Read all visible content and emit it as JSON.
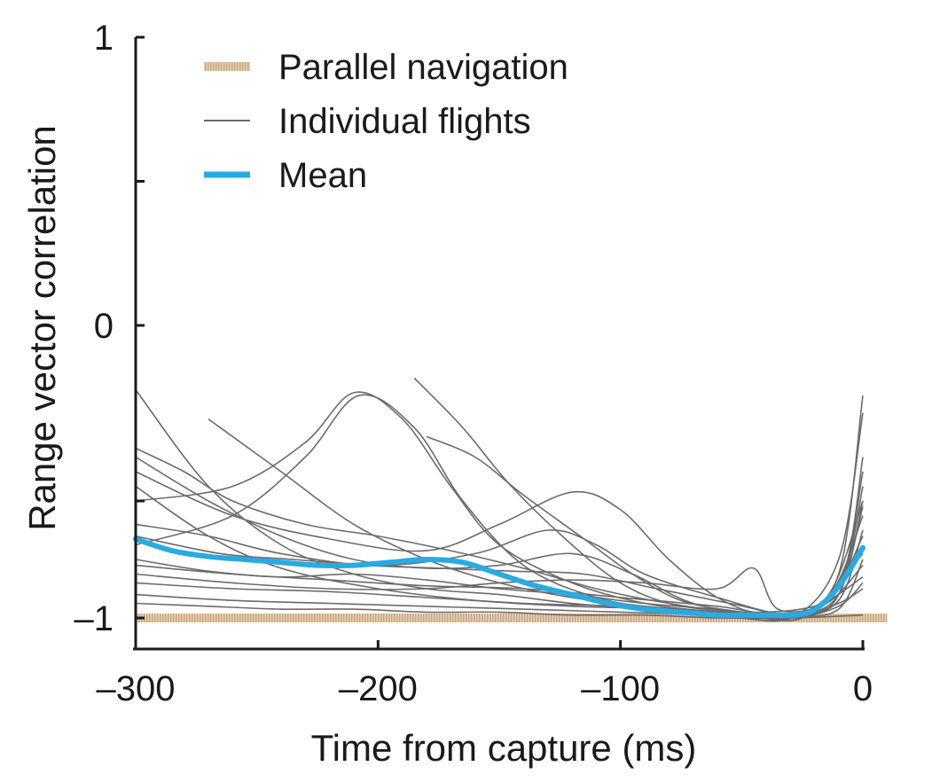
{
  "chart_data": {
    "type": "line",
    "xlabel": "Time from capture (ms)",
    "ylabel": "Range vector correlation",
    "xlim": [
      -300,
      0
    ],
    "ylim": [
      -1.1,
      1
    ],
    "x_ticks": [
      -300,
      -200,
      -100,
      0
    ],
    "x_tick_labels": [
      "–300",
      "–200",
      "–100",
      "0"
    ],
    "y_ticks": [
      -1,
      -0.6,
      0,
      0.5,
      1
    ],
    "y_tick_labels": [
      {
        "value": -1,
        "label": "–1"
      },
      {
        "value": 0,
        "label": "0"
      },
      {
        "value": 1,
        "label": "1"
      }
    ],
    "legend": {
      "position": "top-left",
      "entries": [
        {
          "label": "Parallel navigation",
          "color": "#d9b995",
          "style": "hatched"
        },
        {
          "label": "Individual flights",
          "color": "#6b6b6b",
          "style": "thin"
        },
        {
          "label": "Mean",
          "color": "#29abe2",
          "style": "thick"
        }
      ]
    },
    "parallel_navigation": {
      "x": [
        -300,
        10
      ],
      "y": [
        -1,
        -1
      ],
      "color": "#d9b995"
    },
    "individual_flights": [
      {
        "x": [
          -300,
          -270,
          -240,
          -210,
          -180,
          -150,
          -120,
          -90,
          -60,
          -30,
          -10,
          0
        ],
        "y": [
          -0.22,
          -0.55,
          -0.75,
          -0.85,
          -0.9,
          -0.92,
          -0.95,
          -0.97,
          -0.99,
          -1.0,
          -0.85,
          -0.24
        ]
      },
      {
        "x": [
          -300,
          -260,
          -230,
          -210,
          -190,
          -170,
          -150,
          -120,
          -90,
          -60,
          -30,
          -10,
          0
        ],
        "y": [
          -0.6,
          -0.55,
          -0.4,
          -0.23,
          -0.32,
          -0.55,
          -0.75,
          -0.88,
          -0.95,
          -0.98,
          -1.0,
          -0.8,
          -0.3
        ]
      },
      {
        "x": [
          -300,
          -260,
          -230,
          -208,
          -185,
          -165,
          -140,
          -110,
          -80,
          -50,
          -25,
          -8,
          0
        ],
        "y": [
          -0.75,
          -0.65,
          -0.45,
          -0.24,
          -0.35,
          -0.6,
          -0.82,
          -0.93,
          -0.97,
          -0.99,
          -1.0,
          -0.85,
          -0.45
        ]
      },
      {
        "x": [
          -270,
          -240,
          -210,
          -180,
          -150,
          -120,
          -90,
          -60,
          -30,
          -10,
          0
        ],
        "y": [
          -0.32,
          -0.5,
          -0.68,
          -0.8,
          -0.88,
          -0.93,
          -0.96,
          -0.98,
          -0.99,
          -0.92,
          -0.6
        ]
      },
      {
        "x": [
          -185,
          -165,
          -145,
          -120,
          -100,
          -80,
          -55,
          -30,
          -10,
          0
        ],
        "y": [
          -0.18,
          -0.35,
          -0.55,
          -0.75,
          -0.88,
          -0.95,
          -0.98,
          -1.0,
          -0.9,
          -0.62
        ]
      },
      {
        "x": [
          -180,
          -160,
          -140,
          -115,
          -95,
          -75,
          -50,
          -25,
          -8,
          0
        ],
        "y": [
          -0.38,
          -0.45,
          -0.58,
          -0.73,
          -0.85,
          -0.94,
          -0.98,
          -1.0,
          -0.85,
          -0.55
        ]
      },
      {
        "x": [
          -300,
          -270,
          -240,
          -210,
          -180,
          -150,
          -120,
          -95,
          -70,
          -40,
          -15,
          0
        ],
        "y": [
          -0.45,
          -0.6,
          -0.72,
          -0.8,
          -0.83,
          -0.82,
          -0.78,
          -0.85,
          -0.95,
          -0.99,
          -0.95,
          -0.72
        ]
      },
      {
        "x": [
          -300,
          -260,
          -220,
          -180,
          -150,
          -120,
          -100,
          -80,
          -60,
          -40,
          -20,
          0
        ],
        "y": [
          -0.5,
          -0.65,
          -0.73,
          -0.77,
          -0.68,
          -0.57,
          -0.63,
          -0.8,
          -0.93,
          -0.99,
          -0.97,
          -0.78
        ]
      },
      {
        "x": [
          -300,
          -265,
          -235,
          -205,
          -175,
          -145,
          -115,
          -85,
          -55,
          -30,
          -10,
          0
        ],
        "y": [
          -0.72,
          -0.78,
          -0.8,
          -0.82,
          -0.83,
          -0.84,
          -0.85,
          -0.9,
          -0.95,
          -0.99,
          -0.97,
          -0.8
        ]
      },
      {
        "x": [
          -300,
          -260,
          -220,
          -180,
          -150,
          -120,
          -90,
          -60,
          -45,
          -35,
          -15,
          0
        ],
        "y": [
          -0.85,
          -0.88,
          -0.9,
          -0.9,
          -0.88,
          -0.87,
          -0.88,
          -0.9,
          -0.83,
          -0.97,
          -0.95,
          -0.82
        ]
      },
      {
        "x": [
          -300,
          -260,
          -220,
          -180,
          -140,
          -100,
          -60,
          -30,
          -10,
          0
        ],
        "y": [
          -0.88,
          -0.9,
          -0.91,
          -0.93,
          -0.95,
          -0.96,
          -0.98,
          -1.0,
          -0.95,
          -0.9
        ]
      },
      {
        "x": [
          -300,
          -260,
          -220,
          -180,
          -140,
          -100,
          -60,
          -30,
          -10,
          0
        ],
        "y": [
          -0.92,
          -0.94,
          -0.95,
          -0.96,
          -0.97,
          -0.98,
          -0.99,
          -1.0,
          -0.96,
          -0.88
        ]
      },
      {
        "x": [
          -300,
          -270,
          -240,
          -210,
          -180,
          -150,
          -120,
          -90,
          -60,
          -30,
          0
        ],
        "y": [
          -0.95,
          -0.96,
          -0.97,
          -0.97,
          -0.98,
          -0.98,
          -0.99,
          -0.99,
          -1.0,
          -1.0,
          -0.99
        ]
      },
      {
        "x": [
          -300,
          -270,
          -240,
          -200,
          -160,
          -130,
          -110,
          -90,
          -60,
          -30,
          -10,
          0
        ],
        "y": [
          -0.68,
          -0.72,
          -0.78,
          -0.82,
          -0.78,
          -0.7,
          -0.75,
          -0.85,
          -0.93,
          -0.99,
          -0.94,
          -0.7
        ]
      },
      {
        "x": [
          -300,
          -260,
          -220,
          -180,
          -140,
          -100,
          -60,
          -30,
          -12,
          0
        ],
        "y": [
          -0.82,
          -0.85,
          -0.87,
          -0.89,
          -0.9,
          -0.93,
          -0.96,
          -0.99,
          -0.9,
          -0.65
        ]
      },
      {
        "x": [
          -300,
          -270,
          -240,
          -200,
          -160,
          -120,
          -80,
          -40,
          -15,
          0
        ],
        "y": [
          -0.55,
          -0.72,
          -0.83,
          -0.9,
          -0.94,
          -0.96,
          -0.97,
          -0.99,
          -0.93,
          -0.6
        ]
      },
      {
        "x": [
          -300,
          -280,
          -260,
          -230,
          -200,
          -170,
          -140,
          -110,
          -80,
          -50,
          -20,
          0
        ],
        "y": [
          -0.42,
          -0.5,
          -0.6,
          -0.68,
          -0.72,
          -0.77,
          -0.83,
          -0.9,
          -0.95,
          -0.98,
          -0.96,
          -0.86
        ]
      },
      {
        "x": [
          -300,
          -270,
          -240,
          -210,
          -180,
          -150,
          -120,
          -90,
          -60,
          -30,
          -10,
          0
        ],
        "y": [
          -0.8,
          -0.84,
          -0.86,
          -0.85,
          -0.87,
          -0.9,
          -0.92,
          -0.95,
          -0.97,
          -0.99,
          -0.92,
          -0.5
        ]
      }
    ],
    "mean": {
      "x": [
        -300,
        -285,
        -270,
        -255,
        -240,
        -225,
        -210,
        -195,
        -180,
        -165,
        -150,
        -135,
        -120,
        -105,
        -90,
        -75,
        -60,
        -45,
        -30,
        -22,
        -15,
        -8,
        0
      ],
      "y": [
        -0.73,
        -0.77,
        -0.79,
        -0.8,
        -0.81,
        -0.82,
        -0.82,
        -0.81,
        -0.8,
        -0.81,
        -0.85,
        -0.89,
        -0.92,
        -0.95,
        -0.97,
        -0.98,
        -0.99,
        -0.99,
        -0.99,
        -0.98,
        -0.94,
        -0.87,
        -0.76
      ],
      "color": "#29abe2"
    }
  }
}
